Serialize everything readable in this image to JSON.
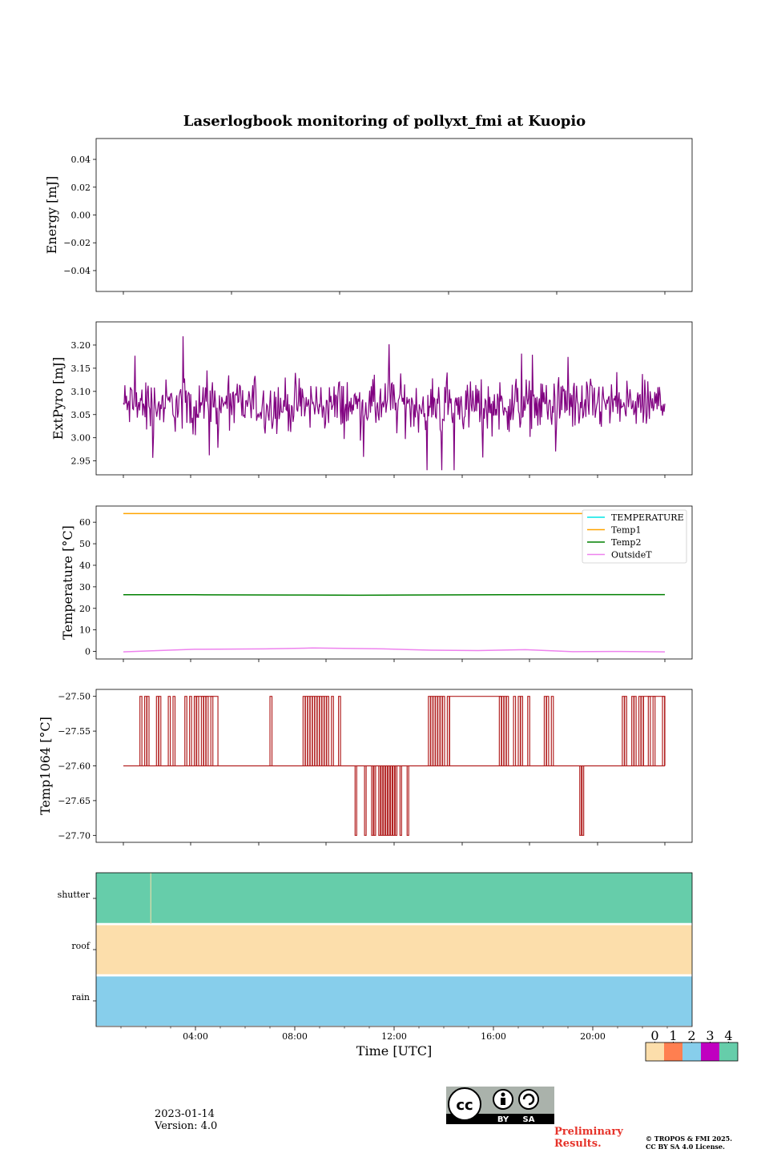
{
  "title": "Laserlogbook monitoring of pollyxt_fmi at Kuopio",
  "chart_data": [
    {
      "type": "line",
      "name": "energy",
      "ylabel": "Energy [mJ]",
      "ylim": [
        -0.055,
        0.055
      ],
      "yticks": [
        "0.04",
        "0.02",
        "0.00",
        "−0.02",
        "−0.04"
      ],
      "ytick_values": [
        0.04,
        0.02,
        0.0,
        -0.02,
        -0.04
      ],
      "series": []
    },
    {
      "type": "line",
      "name": "extpyro",
      "ylabel": "ExtPyro [mJ]",
      "ylim": [
        2.92,
        3.25
      ],
      "yticks": [
        "3.20",
        "3.15",
        "3.10",
        "3.05",
        "3.00",
        "2.95"
      ],
      "ytick_values": [
        3.2,
        3.15,
        3.1,
        3.05,
        3.0,
        2.95
      ],
      "series": [
        {
          "name": "ExtPyro",
          "color": "#800080",
          "mean": 3.07,
          "spread": 0.04,
          "min": 2.93,
          "max": 3.23,
          "x_start": 1.0,
          "x_end": 23.9,
          "samples": 700
        }
      ]
    },
    {
      "type": "line",
      "name": "temperature",
      "ylabel": "Temperature [°C]",
      "ylim": [
        -3.5,
        67.5
      ],
      "yticks": [
        "60",
        "50",
        "40",
        "30",
        "20",
        "10",
        "0"
      ],
      "ytick_values": [
        60,
        50,
        40,
        30,
        20,
        10,
        0
      ],
      "legend": [
        "TEMPERATURE",
        "Temp1",
        "Temp2",
        "OutsideT"
      ],
      "legend_colors": [
        "#00e5e5",
        "#ffa500",
        "#008000",
        "#ee82ee"
      ],
      "series": [
        {
          "name": "TEMPERATURE",
          "color": "#00e5e5",
          "x": [],
          "y": []
        },
        {
          "name": "Temp1",
          "color": "#ffa500",
          "x": [
            1.0,
            23.9
          ],
          "y": [
            64,
            64
          ]
        },
        {
          "name": "Temp2",
          "color": "#008000",
          "x": [
            1.0,
            4.0,
            8.0,
            11.0,
            13.0,
            17.0,
            20.0,
            23.9
          ],
          "y": [
            26.3,
            26.3,
            26.2,
            26.1,
            26.2,
            26.3,
            26.4,
            26.4
          ]
        },
        {
          "name": "OutsideT",
          "color": "#ee82ee",
          "x": [
            1.0,
            2.0,
            4.0,
            7.0,
            9.0,
            12.0,
            14.0,
            16.0,
            18.0,
            20.0,
            22.0,
            23.9
          ],
          "y": [
            -0.2,
            0.2,
            1.0,
            1.2,
            1.6,
            1.2,
            0.6,
            0.4,
            0.8,
            -0.1,
            0.0,
            -0.2
          ]
        }
      ]
    },
    {
      "type": "line",
      "name": "temp1064",
      "ylabel": "Temp1064 [°C]",
      "ylim": [
        -27.71,
        -27.49
      ],
      "yticks": [
        "−27.50",
        "−27.55",
        "−27.60",
        "−27.65",
        "−27.70"
      ],
      "ytick_values": [
        -27.5,
        -27.55,
        -27.6,
        -27.65,
        -27.7
      ],
      "color": "#b22222",
      "base_level": -27.6,
      "high_level": -27.5,
      "low_level": -27.7,
      "high_plateaus": [
        [
          4.0,
          5.0
        ],
        [
          14.8,
          17.0
        ],
        [
          23.0,
          23.9
        ]
      ],
      "high_spikes": [
        1.7,
        1.9,
        2.0,
        2.4,
        2.5,
        2.9,
        3.1,
        3.6,
        3.8,
        4.0,
        4.1,
        4.3,
        4.4,
        4.5,
        4.7,
        7.2,
        8.6,
        8.7,
        8.8,
        8.9,
        9.0,
        9.1,
        9.2,
        9.3,
        9.4,
        9.5,
        9.6,
        9.8,
        10.1,
        13.9,
        14.0,
        14.1,
        14.2,
        14.3,
        14.4,
        14.5,
        14.7,
        16.9,
        17.0,
        17.1,
        17.2,
        17.5,
        17.7,
        17.8,
        18.1,
        18.8,
        18.9,
        19.1,
        22.1,
        22.2,
        22.5,
        22.6,
        22.8,
        22.9,
        23.2,
        23.4,
        23.8
      ],
      "low_spikes": [
        10.8,
        11.2,
        11.5,
        11.6,
        11.8,
        11.9,
        12.0,
        12.1,
        12.2,
        12.3,
        12.4,
        12.5,
        12.7,
        13.0,
        20.3,
        20.4
      ]
    },
    {
      "type": "heatmap",
      "name": "status",
      "rows": [
        "shutter",
        "roof",
        "rain"
      ],
      "row_colors": [
        "#66cdaa",
        "#fcdeab",
        "#87ceeb"
      ],
      "xlabel": "Time [UTC]",
      "xlim": [
        0,
        24
      ],
      "xticks": [
        "04:00",
        "08:00",
        "12:00",
        "16:00",
        "20:00"
      ],
      "xtick_values": [
        4,
        8,
        12,
        16,
        20
      ],
      "shutter_gap_at": 2.2,
      "colorbar_labels": [
        "0",
        "1",
        "2",
        "3",
        "4"
      ],
      "colorbar_colors": [
        "#fcdeab",
        "#ff7f50",
        "#87ceeb",
        "#c000c0",
        "#66cdaa"
      ]
    }
  ],
  "date": "2023-01-14",
  "version": "Version: 4.0",
  "preliminary": "Preliminary",
  "results": "Results.",
  "copyright_line1": "© TROPOS & FMI 2025.",
  "copyright_line2": "CC BY SA 4.0 License.",
  "cc_by": "BY",
  "cc_sa": "SA"
}
